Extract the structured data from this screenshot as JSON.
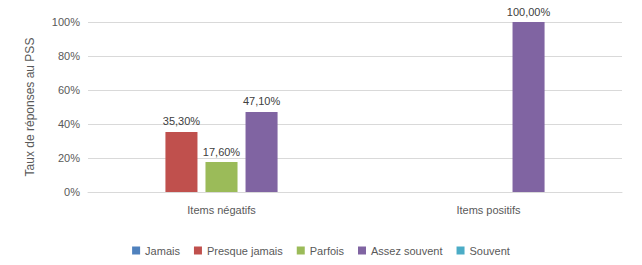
{
  "chart_data": {
    "type": "bar",
    "y_label": "Taux de réponses au PSS",
    "categories": [
      "Items négatifs",
      "Items positifs"
    ],
    "series": [
      {
        "name": "Jamais",
        "color": "#4f81bd",
        "values": [
          null,
          null
        ],
        "value_labels": [
          null,
          null
        ]
      },
      {
        "name": "Presque jamais",
        "color": "#c0504d",
        "values": [
          35.3,
          null
        ],
        "value_labels": [
          "35,30%",
          null
        ]
      },
      {
        "name": "Parfois",
        "color": "#9bbb59",
        "values": [
          17.6,
          null
        ],
        "value_labels": [
          "17,60%",
          null
        ]
      },
      {
        "name": "Assez souvent",
        "color": "#8064a2",
        "values": [
          47.1,
          100
        ],
        "value_labels": [
          "47,10%",
          "100,00%"
        ]
      },
      {
        "name": "Souvent",
        "color": "#4bacc6",
        "values": [
          null,
          null
        ],
        "value_labels": [
          null,
          null
        ]
      }
    ],
    "ylim": [
      0,
      100
    ],
    "yticks": [
      {
        "value": 0,
        "label": "0%"
      },
      {
        "value": 20,
        "label": "20%"
      },
      {
        "value": 40,
        "label": "40%"
      },
      {
        "value": 60,
        "label": "60%"
      },
      {
        "value": 80,
        "label": "80%"
      },
      {
        "value": 100,
        "label": "100%"
      }
    ],
    "grid": true,
    "legend": "bottom",
    "data_labels": true
  }
}
